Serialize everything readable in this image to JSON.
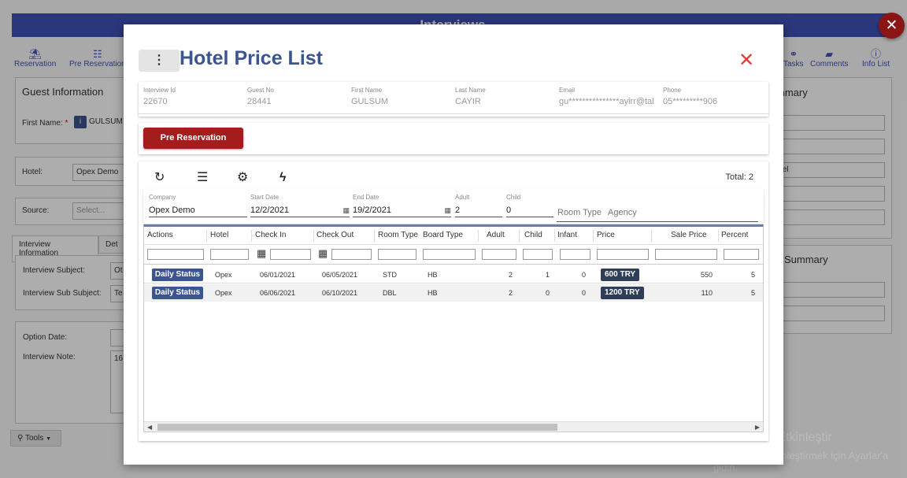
{
  "background": {
    "header_title": "Interviews",
    "toolbar": {
      "reservation": "Reservation",
      "pre_reservation": "Pre Reservation",
      "tasks": "Tasks",
      "comments": "Comments",
      "info_list": "Info List"
    },
    "guest_info": {
      "title": "Guest Information",
      "first_name_label": "First Name:",
      "required_mark": "*",
      "first_name_value": "GULSUM"
    },
    "hotel_label": "Hotel:",
    "hotel_value": "Opex Demo",
    "source_label": "Source:",
    "source_placeholder": "Select...",
    "tabs": {
      "interview_information": "Interview Information",
      "details": "Det"
    },
    "interview_subject_label": "Interview Subject:",
    "interview_subject_value": "Ot",
    "interview_sub_subject_label": "Interview Sub Subject:",
    "interview_sub_subject_value": "Te",
    "option_date_label": "Option Date:",
    "interview_note_label": "Interview Note:",
    "interview_note_value": "16",
    "right_panel": {
      "summary_title": "mmary",
      "hotel_field_value": "tel",
      "summary2_title": "Summary"
    },
    "tools_label": "Tools",
    "watermark": {
      "line1": "Windows'u Etkinleştir",
      "line2": "Windows'u etkinleştirmek için Ayarlar'a gidin."
    }
  },
  "modal": {
    "title": "Hotel Price List",
    "guest": {
      "interview_id_label": "Interview Id",
      "interview_id": "22670",
      "guest_no_label": "Guest No",
      "guest_no": "28441",
      "first_name_label": "First Name",
      "first_name": "GULSUM",
      "last_name_label": "Last Name",
      "last_name": "CAYIR",
      "email_label": "Email",
      "email": "gu***************ayirr@tal",
      "phone_label": "Phone",
      "phone": "05*********906"
    },
    "pre_reservation_button": "Pre Reservation",
    "total_label": "Total: 2",
    "filters": {
      "company_label": "Company",
      "company": "Opex Demo",
      "start_date_label": "Start Date",
      "start_date": "12/2/2021",
      "end_date_label": "End Date",
      "end_date": "19/2/2021",
      "adult_label": "Adult",
      "adult": "2",
      "child_label": "Child",
      "child": "0",
      "room_type_placeholder": "Room Type",
      "agency_placeholder": "Agency"
    },
    "table": {
      "columns": [
        "Actions",
        "Hotel",
        "Check In",
        "Check Out",
        "Room Type",
        "Board Type",
        "Adult",
        "Child",
        "Infant",
        "Price",
        "Sale Price",
        "Percent"
      ],
      "rows": [
        {
          "action": "Daily Status",
          "hotel": "Opex",
          "check_in": "06/01/2021",
          "check_out": "06/05/2021",
          "room_type": "STD",
          "board_type": "HB",
          "adult": "2",
          "child": "1",
          "infant": "0",
          "price": "600 TRY",
          "sale_price": "550",
          "percent": "5"
        },
        {
          "action": "Daily Status",
          "hotel": "Opex",
          "check_in": "06/06/2021",
          "check_out": "06/10/2021",
          "room_type": "DBL",
          "board_type": "HB",
          "adult": "2",
          "child": "0",
          "infant": "0",
          "price": "1200 TRY",
          "sale_price": "110",
          "percent": "5"
        }
      ]
    }
  },
  "icons": {
    "kebab": "⋮",
    "close": "✕",
    "refresh": "↻",
    "menu": "☰",
    "gear": "⚙",
    "bolt": "ϟ",
    "calendar": "▦",
    "info": "i"
  },
  "colors": {
    "title": "#3a558f",
    "primary_button": "#a51c1c",
    "header": "#3f51b5",
    "badge": "#2f3e58"
  }
}
